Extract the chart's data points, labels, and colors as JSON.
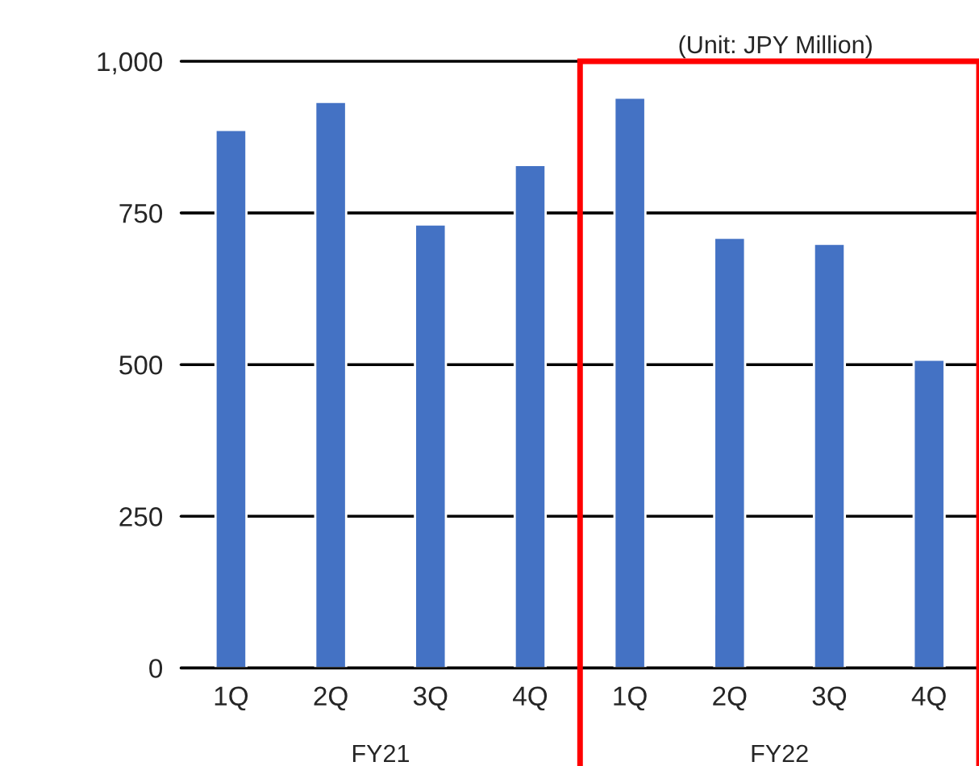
{
  "chart_data": {
    "type": "bar",
    "subtitle": "(Unit: JPY Million)",
    "categories": [
      "1Q",
      "2Q",
      "3Q",
      "4Q",
      "1Q",
      "2Q",
      "3Q",
      "4Q"
    ],
    "values": [
      887,
      933,
      731,
      829,
      940,
      709,
      699,
      508
    ],
    "color": "#4472c4",
    "ylim": [
      0,
      1000
    ],
    "yticks": [
      {
        "value": 0,
        "label": "0"
      },
      {
        "value": 250,
        "label": "250"
      },
      {
        "value": 500,
        "label": "500"
      },
      {
        "value": 750,
        "label": "750"
      },
      {
        "value": 1000,
        "label": "1,000"
      }
    ],
    "grid": "y",
    "annotations": [
      "FY21",
      "FY22"
    ]
  }
}
